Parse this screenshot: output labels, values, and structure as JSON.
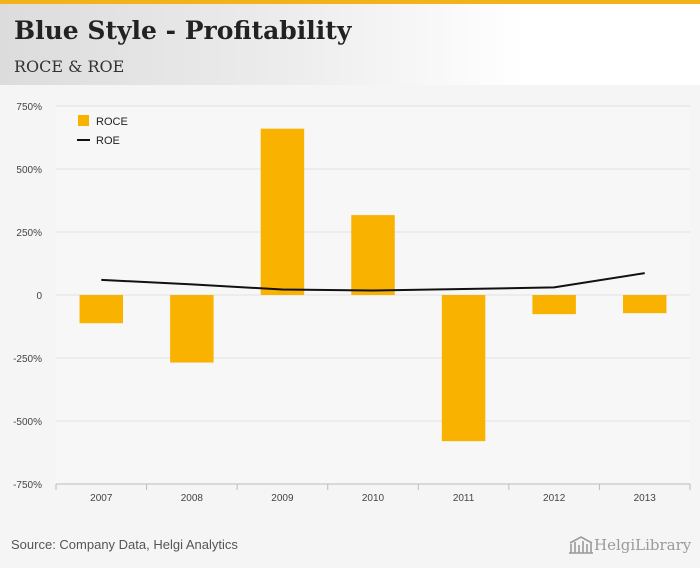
{
  "header": {
    "title": "Blue Style - Profitability",
    "subtitle": "ROCE & ROE"
  },
  "footer": {
    "source": "Source: Company Data, Helgi Analytics",
    "logo_text": "HelgiLibrary"
  },
  "colors": {
    "accent": "#f2b21b",
    "bar": "#f9b200",
    "line": "#111111",
    "grid": "#e0e0e0",
    "axis_text": "#444444"
  },
  "chart_data": {
    "type": "bar",
    "categories": [
      "2007",
      "2008",
      "2009",
      "2010",
      "2011",
      "2012",
      "2013"
    ],
    "series": [
      {
        "name": "ROCE",
        "type": "bar",
        "values": [
          -112,
          -268,
          660,
          317,
          -580,
          -76,
          -72
        ]
      },
      {
        "name": "ROE",
        "type": "line",
        "values": [
          60,
          42,
          22,
          18,
          24,
          30,
          87
        ]
      }
    ],
    "ylim": [
      -750,
      750
    ],
    "yticks": [
      750,
      500,
      250,
      0,
      -250,
      -500,
      -750
    ],
    "ytick_labels": [
      "750%",
      "500%",
      "250%",
      "0",
      "-250%",
      "-500%",
      "-750%"
    ],
    "legend": {
      "position": "top-left",
      "items": [
        "ROCE",
        "ROE"
      ]
    },
    "grid": true,
    "xlabel": "",
    "ylabel": ""
  }
}
